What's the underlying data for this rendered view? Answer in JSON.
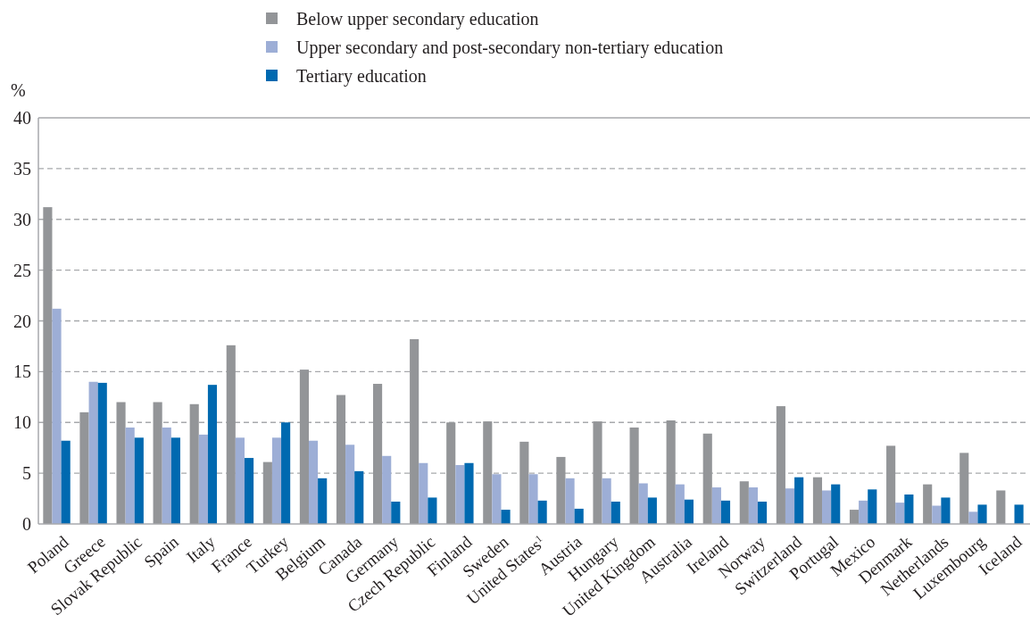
{
  "chart_data": {
    "type": "bar",
    "ylabel": "%",
    "categories": [
      "Poland",
      "Greece",
      "Slovak Republic",
      "Spain",
      "Italy",
      "France",
      "Turkey",
      "Belgium",
      "Canada",
      "Germany",
      "Czech Republic",
      "Finland",
      "Sweden",
      "United States$^{1}$",
      "Austria",
      "Hungary",
      "United Kingdom",
      "Australia",
      "Ireland",
      "Norway",
      "Switzerland",
      "Portugal",
      "Mexico",
      "Denmark",
      "Netherlands",
      "Luxembourg",
      "Iceland"
    ],
    "series": [
      {
        "name": "Below upper secondary education",
        "color": "#939598",
        "values": [
          31.2,
          11,
          12,
          12,
          11.8,
          17.6,
          6.1,
          15.2,
          12.7,
          13.8,
          18.2,
          10,
          10.1,
          8.1,
          6.6,
          10.1,
          9.5,
          10.2,
          8.9,
          4.2,
          11.6,
          4.6,
          1.4,
          7.7,
          3.9,
          7.0,
          3.3
        ]
      },
      {
        "name": "Upper secondary and post-secondary non-tertiary education",
        "color": "#9daed6",
        "values": [
          21.2,
          14.0,
          9.5,
          9.5,
          8.8,
          8.5,
          8.5,
          8.2,
          7.8,
          6.7,
          6.0,
          5.8,
          4.9,
          4.9,
          4.5,
          4.5,
          4.0,
          3.9,
          3.6,
          3.6,
          3.5,
          3.3,
          2.3,
          2.1,
          1.8,
          1.2,
          null
        ]
      },
      {
        "name": "Tertiary education",
        "color": "#0069b0",
        "values": [
          8.2,
          13.9,
          8.5,
          8.5,
          13.7,
          6.5,
          10.0,
          4.5,
          5.2,
          2.2,
          2.6,
          6.0,
          1.4,
          2.3,
          1.5,
          2.2,
          2.6,
          2.4,
          2.3,
          2.2,
          4.6,
          3.9,
          3.4,
          2.9,
          2.6,
          1.9,
          1.9
        ]
      }
    ],
    "ylim": [
      0,
      40
    ],
    "yticks": [
      0,
      5,
      10,
      15,
      20,
      25,
      30,
      35,
      40
    ],
    "grid": "y",
    "legend": "top"
  }
}
